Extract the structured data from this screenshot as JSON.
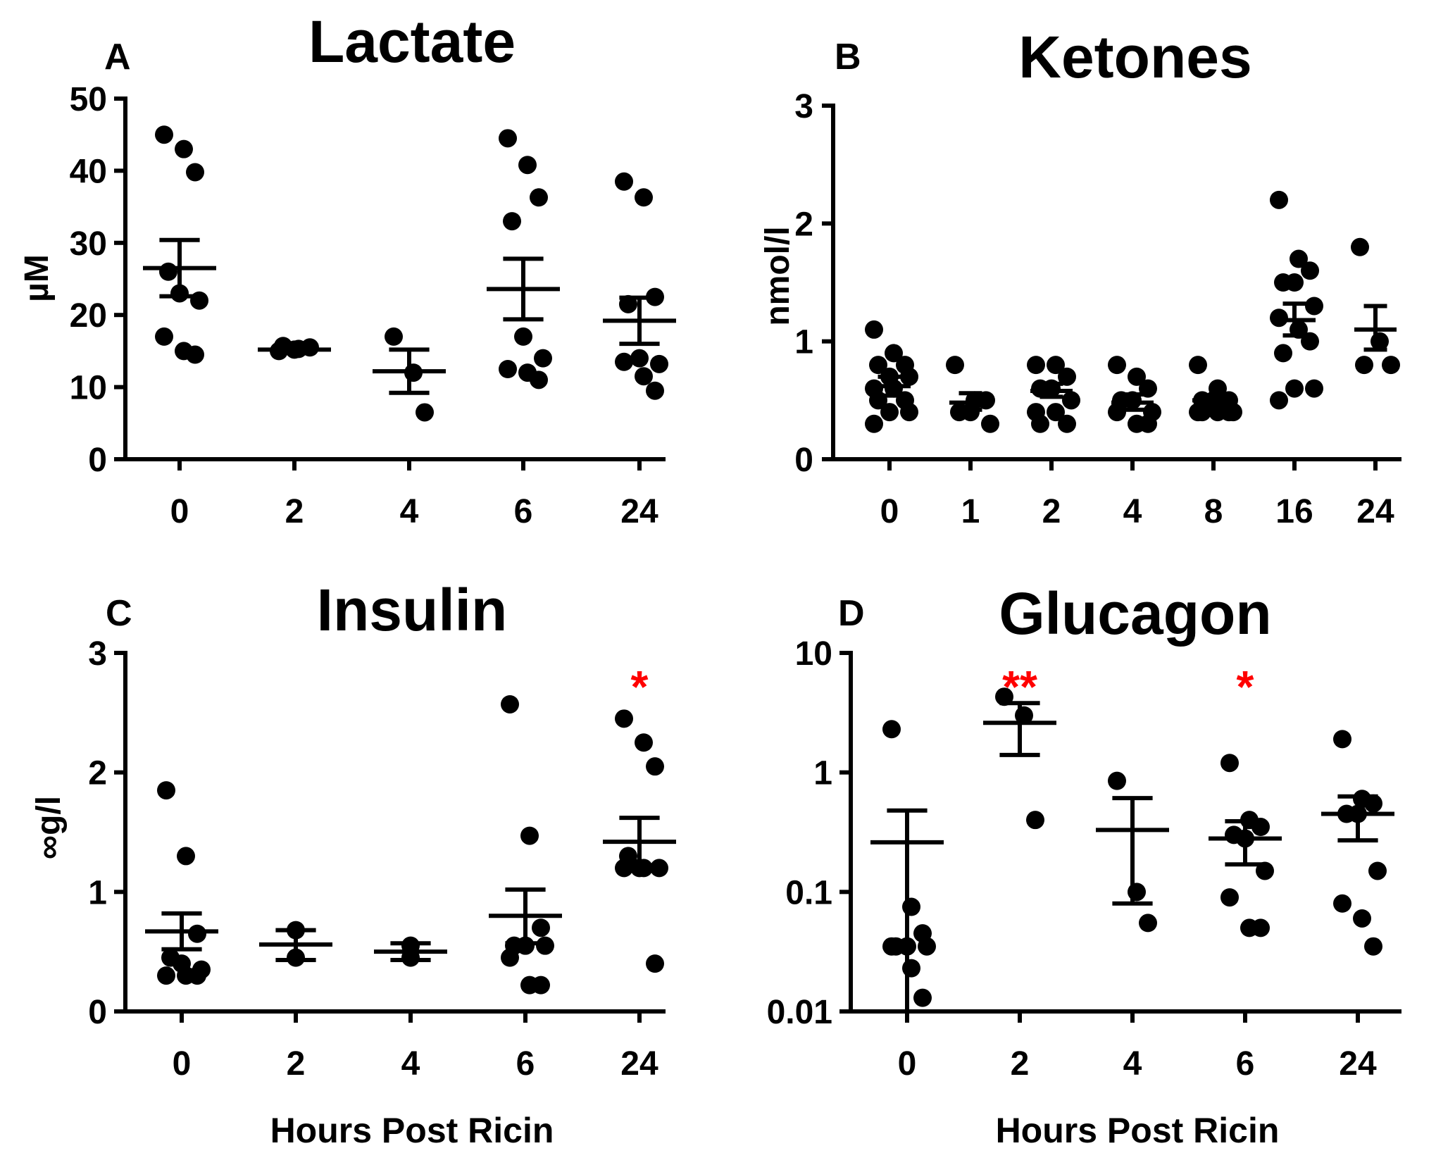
{
  "chart_data": [
    {
      "panel": "A",
      "type": "scatter",
      "title": "Lactate",
      "ylabel": "µM",
      "xlabel": "",
      "yscale": "linear",
      "ylim": [
        0,
        50
      ],
      "yticks": [
        "0",
        "10",
        "20",
        "30",
        "40",
        "50"
      ],
      "categories": [
        "0",
        "2",
        "4",
        "6",
        "24"
      ],
      "points": [
        [
          45,
          43,
          39.8,
          26,
          23,
          22,
          17,
          15,
          14.5
        ],
        [
          15,
          15.3,
          15.5,
          15.7,
          15.2
        ],
        [
          17,
          12,
          6.5
        ],
        [
          44.5,
          40.8,
          36.3,
          33,
          17,
          14,
          12.5,
          12,
          11
        ],
        [
          38.5,
          36.3,
          22.5,
          21.5,
          14,
          13.2,
          13.5,
          11.5,
          9.5
        ]
      ],
      "mean": [
        26.5,
        15.2,
        12.2,
        23.6,
        19.2
      ],
      "sem_low": [
        22.6,
        14.9,
        9.2,
        19.4,
        16.0
      ],
      "sem_high": [
        30.4,
        15.5,
        15.2,
        27.8,
        22.4
      ],
      "annotations": []
    },
    {
      "panel": "B",
      "type": "scatter",
      "title": "Ketones",
      "ylabel": "nmol/l",
      "xlabel": "",
      "yscale": "linear",
      "ylim": [
        0,
        3
      ],
      "yticks": [
        "0",
        "1",
        "2",
        "3"
      ],
      "categories": [
        "0",
        "1",
        "2",
        "4",
        "8",
        "16",
        "24"
      ],
      "points": [
        [
          1.1,
          0.9,
          0.8,
          0.8,
          0.7,
          0.7,
          0.6,
          0.6,
          0.5,
          0.5,
          0.4,
          0.4,
          0.3
        ],
        [
          0.8,
          0.5,
          0.5,
          0.4,
          0.4,
          0.3
        ],
        [
          0.8,
          0.8,
          0.7,
          0.6,
          0.6,
          0.5,
          0.4,
          0.4,
          0.3,
          0.3
        ],
        [
          0.8,
          0.7,
          0.6,
          0.5,
          0.5,
          0.4,
          0.4,
          0.3,
          0.3
        ],
        [
          0.8,
          0.6,
          0.5,
          0.5,
          0.5,
          0.4,
          0.4,
          0.4,
          0.4,
          0.4
        ],
        [
          2.2,
          1.7,
          1.6,
          1.5,
          1.5,
          1.3,
          1.2,
          1.1,
          1.0,
          0.9,
          0.6,
          0.6,
          0.5
        ],
        [
          1.8,
          1.0,
          0.8,
          0.8
        ]
      ],
      "mean": [
        0.62,
        0.48,
        0.58,
        0.48,
        0.5,
        1.18,
        1.1
      ],
      "sem_low": [
        0.54,
        0.42,
        0.53,
        0.42,
        0.46,
        1.05,
        0.93
      ],
      "sem_high": [
        0.7,
        0.56,
        0.64,
        0.55,
        0.54,
        1.32,
        1.3
      ],
      "annotations": []
    },
    {
      "panel": "C",
      "type": "scatter",
      "title": "Insulin",
      "ylabel": "∞g/l",
      "xlabel": "Hours Post Ricin",
      "yscale": "linear",
      "ylim": [
        0,
        3
      ],
      "yticks": [
        "0",
        "1",
        "2",
        "3"
      ],
      "categories": [
        "0",
        "2",
        "4",
        "6",
        "24"
      ],
      "points": [
        [
          1.85,
          1.3,
          0.65,
          0.45,
          0.4,
          0.35,
          0.3,
          0.3,
          0.3
        ],
        [
          0.68,
          0.45
        ],
        [
          0.55,
          0.45
        ],
        [
          2.57,
          1.47,
          0.7,
          0.55,
          0.55,
          0.55,
          0.45,
          0.22,
          0.22
        ],
        [
          2.45,
          2.25,
          2.05,
          1.3,
          1.2,
          1.2,
          1.2,
          1.2,
          0.4
        ]
      ],
      "mean": [
        0.67,
        0.56,
        0.5,
        0.8,
        1.42
      ],
      "sem_low": [
        0.52,
        0.43,
        0.43,
        0.57,
        1.22
      ],
      "sem_high": [
        0.82,
        0.68,
        0.57,
        1.02,
        1.62
      ],
      "annotations": [
        {
          "category": "24",
          "text": "*"
        }
      ]
    },
    {
      "panel": "D",
      "type": "scatter",
      "title": "Glucagon",
      "ylabel": "",
      "xlabel": "Hours Post Ricin",
      "yscale": "log",
      "ylim": [
        0.01,
        10
      ],
      "yticks": [
        "0.01",
        "0.1",
        "1",
        "10"
      ],
      "categories": [
        "0",
        "2",
        "4",
        "6",
        "24"
      ],
      "points": [
        [
          2.3,
          0.075,
          0.045,
          0.035,
          0.035,
          0.035,
          0.035,
          0.023,
          0.013
        ],
        [
          4.3,
          3.0,
          0.4
        ],
        [
          0.85,
          0.1,
          0.055
        ],
        [
          1.2,
          0.4,
          0.35,
          0.3,
          0.28,
          0.15,
          0.09,
          0.05,
          0.05
        ],
        [
          1.9,
          0.6,
          0.55,
          0.45,
          0.45,
          0.15,
          0.08,
          0.06,
          0.035
        ]
      ],
      "mean": [
        0.26,
        2.6,
        0.33,
        0.28,
        0.45
      ],
      "sem_low": [
        0.01,
        1.4,
        0.08,
        0.17,
        0.27
      ],
      "sem_high": [
        0.48,
        3.8,
        0.61,
        0.39,
        0.63
      ],
      "annotations": [
        {
          "category": "2",
          "text": "**"
        },
        {
          "category": "6",
          "text": "*"
        }
      ]
    }
  ]
}
